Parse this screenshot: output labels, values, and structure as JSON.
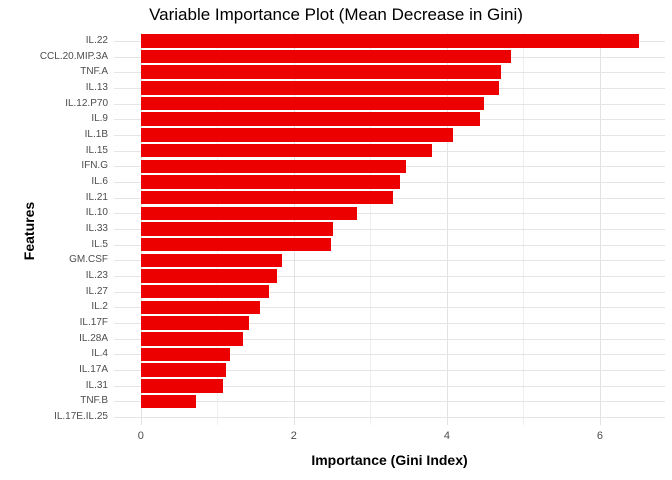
{
  "chart_data": {
    "type": "bar",
    "orientation": "horizontal",
    "title": "Variable Importance Plot (Mean Decrease in Gini)",
    "xlabel": "Importance (Gini Index)",
    "ylabel": "Features",
    "categories": [
      "IL.22",
      "CCL.20.MIP.3A",
      "TNF.A",
      "IL.13",
      "IL.12.P70",
      "IL.9",
      "IL.1B",
      "IL.15",
      "IFN.G",
      "IL.6",
      "IL.21",
      "IL.10",
      "IL.33",
      "IL.5",
      "GM.CSF",
      "IL.23",
      "IL.27",
      "IL.2",
      "IL.17F",
      "IL.28A",
      "IL.4",
      "IL.17A",
      "IL.31",
      "TNF.B",
      "IL.17E.IL.25"
    ],
    "values": [
      6.51,
      4.84,
      4.71,
      4.68,
      4.49,
      4.43,
      4.08,
      3.8,
      3.47,
      3.39,
      3.3,
      2.82,
      2.51,
      2.49,
      1.85,
      1.78,
      1.67,
      1.56,
      1.41,
      1.33,
      1.17,
      1.12,
      1.08,
      0.72,
      0.0
    ],
    "xticks": [
      0,
      2,
      4,
      6
    ],
    "xtick_labels": [
      "0",
      "2",
      "4",
      "6"
    ],
    "minor_xticks": [
      1,
      3,
      5
    ],
    "xlim": [
      -0.35,
      6.85
    ],
    "bar_color": "#ec0000",
    "grid_major_color": "#e2e2e2",
    "grid_minor_color": "#efefef",
    "axis_text_color": "#4d4d4d",
    "grid": "on",
    "legend_position": "none"
  }
}
